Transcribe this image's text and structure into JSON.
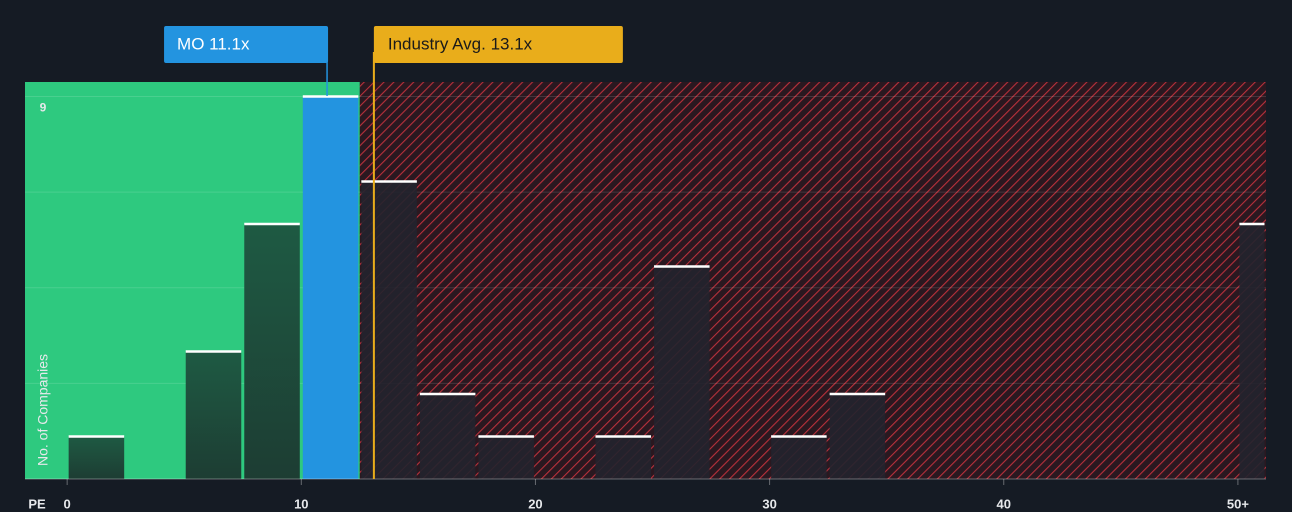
{
  "chart_data": {
    "type": "histogram",
    "x_label": "PE",
    "y_label": "No. of Companies",
    "bins": [
      0,
      2.5,
      5,
      7.5,
      10,
      12.5,
      15,
      17.5,
      20,
      22.5,
      25,
      27.5,
      30,
      32.5,
      35,
      50,
      51.2
    ],
    "values": [
      1,
      0,
      3,
      6,
      9,
      7,
      2,
      1,
      0,
      1,
      5,
      0,
      1,
      2,
      0,
      6
    ],
    "xlim": [
      -1.8,
      51.2
    ],
    "ylim": [
      0,
      9.34
    ],
    "xticks": [
      0,
      10,
      20,
      30,
      40,
      {
        "value": 50,
        "label": "50+"
      }
    ],
    "yticks": [
      9
    ],
    "ygrid": [
      2.25,
      4.5,
      6.75,
      9
    ],
    "fair_value_limit": 12.5,
    "marker": {
      "label": "MO 11.1x",
      "value": 11.1,
      "color": "#2394e0"
    },
    "industry": {
      "label": "Industry Avg. 13.1x",
      "value": 13.1,
      "color": "#e9ad1b"
    },
    "colors": {
      "good": "#2ec97f",
      "bar_good": "#1f4a3a",
      "bar_bad": "#22232e",
      "cap": "#ffffff"
    }
  }
}
